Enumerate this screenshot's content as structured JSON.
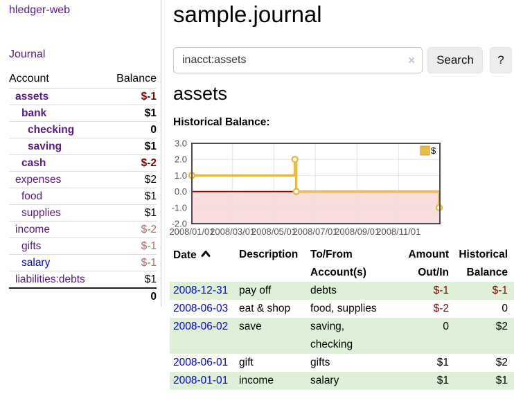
{
  "app": {
    "title": "hledger-web"
  },
  "colors": {
    "link_purple": "#551a8b",
    "link_blue": "#0000ee",
    "negative_bold": "#800000",
    "negative_light": "#b56a6a",
    "row_green": "#dff0d8",
    "series_gold": "#e8bc3f",
    "chart_negative_fill": "#f9dcdc",
    "chart_zero_line": "#8f0000"
  },
  "sidebar": {
    "journal_link": "Journal",
    "accounts": {
      "account_header": "Account",
      "balance_header": "Balance",
      "rows": [
        {
          "name": "assets",
          "depth": 0,
          "bold": true,
          "blue": false,
          "balance": "$-1",
          "negative": true
        },
        {
          "name": "bank",
          "depth": 1,
          "bold": true,
          "blue": false,
          "balance": "$1",
          "negative": false
        },
        {
          "name": "checking",
          "depth": 2,
          "bold": true,
          "blue": false,
          "balance": "0",
          "negative": false
        },
        {
          "name": "saving",
          "depth": 2,
          "bold": true,
          "blue": false,
          "balance": "$1",
          "negative": false
        },
        {
          "name": "cash",
          "depth": 1,
          "bold": true,
          "blue": false,
          "balance": "$-2",
          "negative": true
        },
        {
          "name": "expenses",
          "depth": 0,
          "bold": false,
          "blue": false,
          "balance": "$2",
          "negative": false
        },
        {
          "name": "food",
          "depth": 1,
          "bold": false,
          "blue": false,
          "balance": "$1",
          "negative": false
        },
        {
          "name": "supplies",
          "depth": 1,
          "bold": false,
          "blue": false,
          "balance": "$1",
          "negative": false
        },
        {
          "name": "income",
          "depth": 0,
          "bold": false,
          "blue": false,
          "balance": "$-2",
          "negative": true
        },
        {
          "name": "gifts",
          "depth": 1,
          "bold": false,
          "blue": false,
          "balance": "$-1",
          "negative": true
        },
        {
          "name": "salary",
          "depth": 1,
          "bold": false,
          "blue": true,
          "balance": "$-1",
          "negative": true
        },
        {
          "name": "liabilities:debts",
          "depth": 0,
          "bold": false,
          "blue": false,
          "balance": "$1",
          "negative": false
        }
      ],
      "total": "0"
    }
  },
  "header": {
    "title": "sample.journal"
  },
  "search": {
    "value": "inacct:assets",
    "clear_icon": "×",
    "search_button": "Search",
    "help_button": "?"
  },
  "account": {
    "title": "assets",
    "chart_label": "Historical Balance:"
  },
  "chart_data": {
    "type": "line",
    "step": true,
    "title": "Historical Balance:",
    "x_range": [
      "2008-01-01",
      "2009-01-01"
    ],
    "ylim": [
      -2,
      3
    ],
    "y_ticks": [
      3,
      2,
      1,
      0,
      -1,
      -2
    ],
    "x_ticks": [
      {
        "date": "2008-01-01",
        "label": "2008/01/01"
      },
      {
        "date": "2008-03-01",
        "label": "2008/03/01"
      },
      {
        "date": "2008-05-01",
        "label": "2008/05/01"
      },
      {
        "date": "2008-07-01",
        "label": "2008/07/01"
      },
      {
        "date": "2008-09-01",
        "label": "2008/09/01"
      },
      {
        "date": "2008-11-01",
        "label": "2008/11/01"
      }
    ],
    "series": [
      {
        "name": "$",
        "color": "#e8bc3f",
        "points": [
          [
            "2008-01-01",
            1
          ],
          [
            "2008-06-01",
            2
          ],
          [
            "2008-06-03",
            0
          ],
          [
            "2008-12-31",
            -1
          ]
        ]
      }
    ],
    "negative_region": {
      "from": -2,
      "to": 0,
      "fill": "#f9dcdc",
      "line_color": "#8f0000"
    },
    "legend": {
      "position": "top-right",
      "label": "$"
    },
    "grid": true
  },
  "register": {
    "headers": {
      "date": "Date",
      "sort_icon": "chevron-up",
      "description": "Description",
      "account": "To/From\nAccount(s)",
      "amount": "Amount\nOut/In",
      "balance": "Historical\nBalance"
    },
    "rows": [
      {
        "date": "2008-12-31",
        "description": "pay off",
        "accounts": "debts",
        "amount": "$-1",
        "amount_negative": true,
        "balance": "$-1",
        "balance_negative": true
      },
      {
        "date": "2008-06-03",
        "description": "eat & shop",
        "accounts": "food, supplies",
        "amount": "$-2",
        "amount_negative": true,
        "balance": "0",
        "balance_negative": false
      },
      {
        "date": "2008-06-02",
        "description": "save",
        "accounts": "saving,\nchecking",
        "amount": "0",
        "amount_negative": false,
        "balance": "$2",
        "balance_negative": false
      },
      {
        "date": "2008-06-01",
        "description": "gift",
        "accounts": "gifts",
        "amount": "$1",
        "amount_negative": false,
        "balance": "$2",
        "balance_negative": false
      },
      {
        "date": "2008-01-01",
        "description": "income",
        "accounts": "salary",
        "amount": "$1",
        "amount_negative": false,
        "balance": "$1",
        "balance_negative": false
      }
    ]
  }
}
